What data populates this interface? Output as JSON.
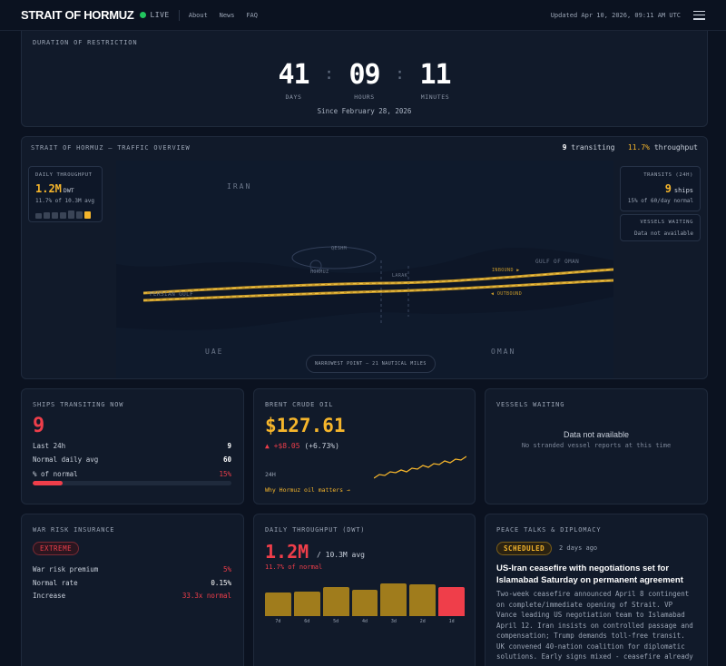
{
  "header": {
    "brand": "STRAIT OF HORMUZ",
    "live": "LIVE",
    "nav": [
      "About",
      "News",
      "FAQ"
    ],
    "updated": "Updated Apr 10, 2026, 09:11 AM UTC"
  },
  "duration": {
    "label": "DURATION OF RESTRICTION",
    "days": "41",
    "days_label": "DAYS",
    "hours": "09",
    "hours_label": "HOURS",
    "minutes": "11",
    "minutes_label": "MINUTES",
    "since": "Since February 28, 2026"
  },
  "traffic": {
    "title": "STRAIT OF HORMUZ — TRAFFIC OVERVIEW",
    "transiting_count": "9",
    "transiting_label": "transiting",
    "throughput_pct": "11.7%",
    "throughput_label": "throughput",
    "daily_throughput": {
      "label": "DAILY THROUGHPUT",
      "value": "1.2M",
      "unit": "DWT",
      "sub": "11.7% of 10.3M avg",
      "bar_levels": [
        0.55,
        0.6,
        0.62,
        0.62,
        0.8,
        0.75,
        0.72
      ]
    },
    "transits": {
      "label": "TRANSITS (24H)",
      "value": "9",
      "unit": "ships",
      "sub": "15% of 60/day normal"
    },
    "vessels_waiting": {
      "label": "VESSELS WAITING",
      "sub": "Data not available"
    },
    "map": {
      "iran": "IRAN",
      "uae": "UAE",
      "oman": "OMAN",
      "qeshm": "QESHM",
      "hormuz": "HORMUZ",
      "larak": "LARAK",
      "persian_gulf": "PERSIAN GULF",
      "gulf_of_oman": "GULF OF OMAN",
      "inbound": "INBOUND ▶",
      "outbound": "◀ OUTBOUND",
      "narrowest": "NARROWEST POINT — 21 NAUTICAL MILES"
    }
  },
  "ships": {
    "label": "SHIPS TRANSITING NOW",
    "value": "9",
    "last24_label": "Last 24h",
    "last24": "9",
    "avg_label": "Normal daily avg",
    "avg": "60",
    "pct_label": "% of normal",
    "pct": "15%",
    "pct_fraction": 0.15
  },
  "brent": {
    "label": "BRENT CRUDE OIL",
    "price": "$127.61",
    "change": "▲ +$8.05",
    "change_pct": "(+6.73%)",
    "period": "24H",
    "link": "Why Hormuz oil matters →"
  },
  "vessels": {
    "label": "VESSELS WAITING",
    "na": "Data not available",
    "sub": "No stranded vessel reports at this time"
  },
  "war": {
    "label": "WAR RISK INSURANCE",
    "badge": "EXTREME",
    "premium_label": "War risk premium",
    "premium": "5%",
    "normal_label": "Normal rate",
    "normal": "0.15%",
    "increase_label": "Increase",
    "increase": "33.3x normal"
  },
  "daily": {
    "label": "DAILY THROUGHPUT (DWT)",
    "value": "1.2M",
    "avg": "/ 10.3M avg",
    "pct": "11.7% of normal",
    "days": [
      "7d",
      "6d",
      "5d",
      "4d",
      "3d",
      "2d",
      "1d"
    ],
    "levels": [
      0.72,
      0.74,
      0.88,
      0.8,
      1.0,
      0.98,
      0.9
    ]
  },
  "peace": {
    "label": "PEACE TALKS & DIPLOMACY",
    "badge": "SCHEDULED",
    "ago": "2 days ago",
    "headline": "US-Iran ceasefire with negotiations set for Islamabad Saturday on permanent agreement",
    "body": "Two-week ceasefire announced April 8 contingent on complete/immediate opening of Strait. VP Vance leading US negotiation team to Islamabad April 12. Iran insists on controlled passage and compensation; Trump demands toll-free transit. UK convened 40-nation coalition for diplomatic solutions. Early signs mixed - ceasefire already"
  },
  "colors": {
    "bg": "#0b1220",
    "card": "#111a2a",
    "amber": "#f5b52b",
    "red": "#ef3e4a",
    "green": "#22c55e"
  }
}
